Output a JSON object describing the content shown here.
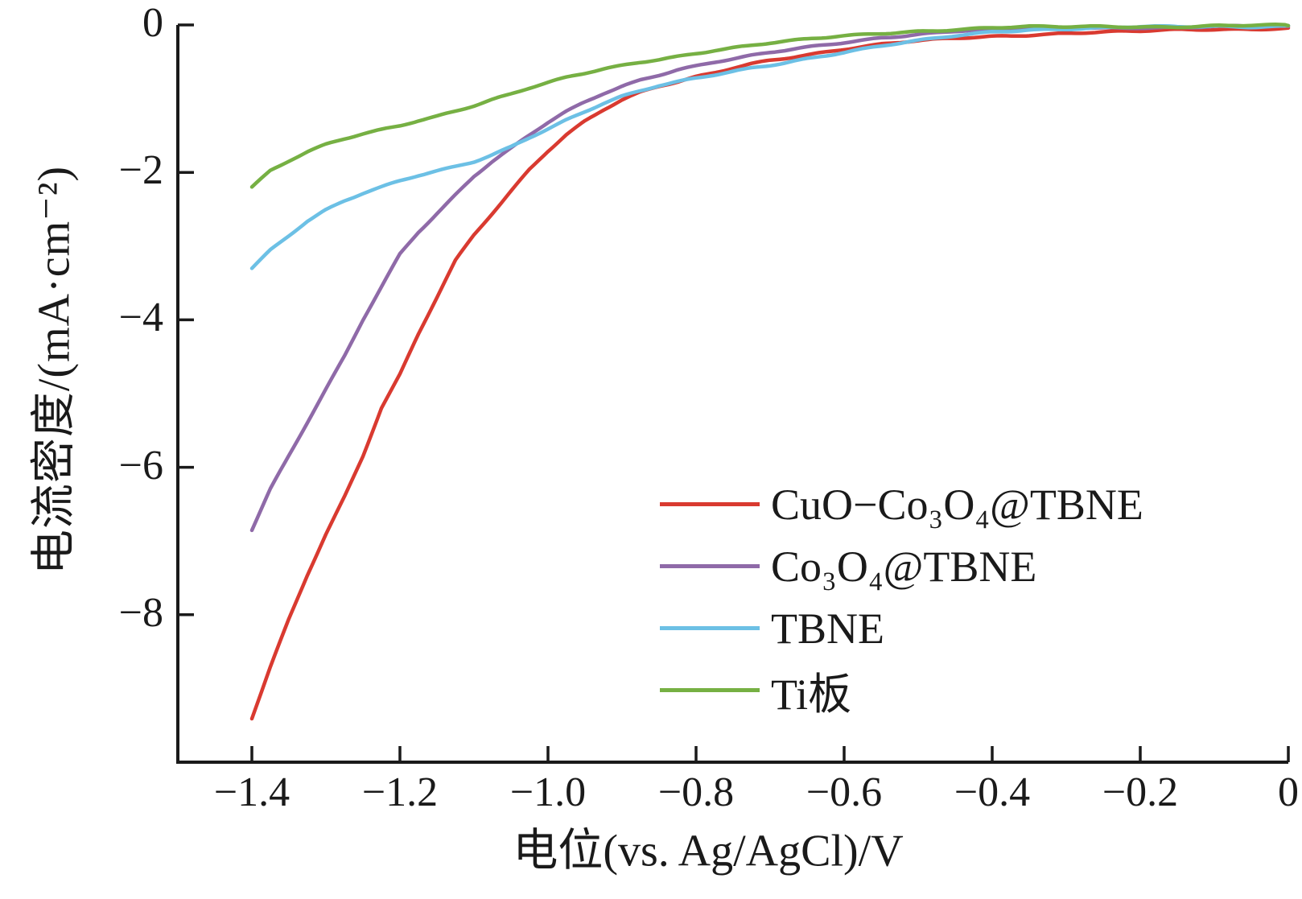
{
  "figure": {
    "background": "#ffffff",
    "axis_color": "#1a1a1a"
  },
  "chart_data": {
    "type": "line",
    "title": "",
    "xlabel": "电位(vs. Ag/AgCl)/V",
    "ylabel": "电流密度/(mA·cm⁻²)",
    "xlim": [
      -1.5,
      0
    ],
    "ylim": [
      -10,
      0
    ],
    "grid": false,
    "legend_position": "inside lower-right",
    "x_ticks": {
      "values": [
        -1.4,
        -1.2,
        -1.0,
        -0.8,
        -0.6,
        -0.4,
        -0.2,
        0
      ],
      "labels": [
        "−1.4",
        "−1.2",
        "−1.0",
        "−0.8",
        "−0.6",
        "−0.4",
        "−0.2",
        "0"
      ]
    },
    "y_ticks": {
      "values": [
        0,
        -2,
        -4,
        -6,
        -8
      ],
      "labels": [
        "0",
        "−2",
        "−4",
        "−6",
        "−8"
      ]
    },
    "series": [
      {
        "name": "CuO−Co₃O₄@TBNE",
        "color": "#d93a30",
        "points": [
          [
            -1.4,
            -9.4
          ],
          [
            -1.375,
            -8.7
          ],
          [
            -1.35,
            -8.05
          ],
          [
            -1.325,
            -7.45
          ],
          [
            -1.3,
            -6.9
          ],
          [
            -1.275,
            -6.4
          ],
          [
            -1.25,
            -5.85
          ],
          [
            -1.225,
            -5.2
          ],
          [
            -1.2,
            -4.75
          ],
          [
            -1.175,
            -4.2
          ],
          [
            -1.15,
            -3.7
          ],
          [
            -1.125,
            -3.2
          ],
          [
            -1.1,
            -2.85
          ],
          [
            -1.075,
            -2.55
          ],
          [
            -1.05,
            -2.25
          ],
          [
            -1.025,
            -1.95
          ],
          [
            -1.0,
            -1.7
          ],
          [
            -0.975,
            -1.48
          ],
          [
            -0.95,
            -1.3
          ],
          [
            -0.925,
            -1.15
          ],
          [
            -0.9,
            -1.02
          ],
          [
            -0.875,
            -0.92
          ],
          [
            -0.85,
            -0.84
          ],
          [
            -0.825,
            -0.78
          ],
          [
            -0.8,
            -0.71
          ],
          [
            -0.775,
            -0.65
          ],
          [
            -0.75,
            -0.58
          ],
          [
            -0.725,
            -0.52
          ],
          [
            -0.7,
            -0.47
          ],
          [
            -0.65,
            -0.4
          ],
          [
            -0.6,
            -0.33
          ],
          [
            -0.55,
            -0.27
          ],
          [
            -0.5,
            -0.22
          ],
          [
            -0.45,
            -0.18
          ],
          [
            -0.4,
            -0.15
          ],
          [
            -0.35,
            -0.13
          ],
          [
            -0.3,
            -0.11
          ],
          [
            -0.25,
            -0.1
          ],
          [
            -0.2,
            -0.09
          ],
          [
            -0.15,
            -0.07
          ],
          [
            -0.1,
            -0.06
          ],
          [
            -0.05,
            -0.05
          ],
          [
            0.0,
            -0.04
          ]
        ]
      },
      {
        "name": "Co₃O₄@TBNE",
        "color": "#8f6aa8",
        "points": [
          [
            -1.4,
            -6.85
          ],
          [
            -1.375,
            -6.3
          ],
          [
            -1.35,
            -5.85
          ],
          [
            -1.325,
            -5.4
          ],
          [
            -1.3,
            -4.95
          ],
          [
            -1.275,
            -4.5
          ],
          [
            -1.25,
            -4.0
          ],
          [
            -1.225,
            -3.55
          ],
          [
            -1.2,
            -3.1
          ],
          [
            -1.175,
            -2.8
          ],
          [
            -1.15,
            -2.55
          ],
          [
            -1.125,
            -2.3
          ],
          [
            -1.1,
            -2.05
          ],
          [
            -1.075,
            -1.85
          ],
          [
            -1.05,
            -1.68
          ],
          [
            -1.025,
            -1.5
          ],
          [
            -1.0,
            -1.33
          ],
          [
            -0.975,
            -1.18
          ],
          [
            -0.95,
            -1.05
          ],
          [
            -0.925,
            -0.93
          ],
          [
            -0.9,
            -0.83
          ],
          [
            -0.875,
            -0.74
          ],
          [
            -0.85,
            -0.67
          ],
          [
            -0.825,
            -0.6
          ],
          [
            -0.8,
            -0.55
          ],
          [
            -0.775,
            -0.5
          ],
          [
            -0.75,
            -0.46
          ],
          [
            -0.725,
            -0.42
          ],
          [
            -0.7,
            -0.38
          ],
          [
            -0.65,
            -0.31
          ],
          [
            -0.6,
            -0.24
          ],
          [
            -0.55,
            -0.17
          ],
          [
            -0.5,
            -0.12
          ],
          [
            -0.45,
            -0.08
          ],
          [
            -0.4,
            -0.06
          ],
          [
            -0.35,
            -0.05
          ],
          [
            -0.3,
            -0.04
          ],
          [
            -0.25,
            -0.04
          ],
          [
            -0.2,
            -0.03
          ],
          [
            -0.15,
            -0.03
          ],
          [
            -0.1,
            -0.02
          ],
          [
            -0.05,
            -0.02
          ],
          [
            0.0,
            -0.02
          ]
        ]
      },
      {
        "name": "TBNE",
        "color": "#6cc0e5",
        "points": [
          [
            -1.4,
            -3.3
          ],
          [
            -1.375,
            -3.05
          ],
          [
            -1.35,
            -2.85
          ],
          [
            -1.325,
            -2.65
          ],
          [
            -1.3,
            -2.5
          ],
          [
            -1.275,
            -2.38
          ],
          [
            -1.25,
            -2.28
          ],
          [
            -1.225,
            -2.2
          ],
          [
            -1.2,
            -2.12
          ],
          [
            -1.175,
            -2.05
          ],
          [
            -1.15,
            -1.99
          ],
          [
            -1.125,
            -1.93
          ],
          [
            -1.1,
            -1.86
          ],
          [
            -1.075,
            -1.76
          ],
          [
            -1.05,
            -1.65
          ],
          [
            -1.025,
            -1.52
          ],
          [
            -1.0,
            -1.4
          ],
          [
            -0.975,
            -1.28
          ],
          [
            -0.95,
            -1.17
          ],
          [
            -0.925,
            -1.06
          ],
          [
            -0.9,
            -0.97
          ],
          [
            -0.875,
            -0.9
          ],
          [
            -0.85,
            -0.83
          ],
          [
            -0.825,
            -0.78
          ],
          [
            -0.8,
            -0.73
          ],
          [
            -0.775,
            -0.68
          ],
          [
            -0.75,
            -0.63
          ],
          [
            -0.725,
            -0.58
          ],
          [
            -0.7,
            -0.54
          ],
          [
            -0.65,
            -0.45
          ],
          [
            -0.6,
            -0.37
          ],
          [
            -0.55,
            -0.29
          ],
          [
            -0.5,
            -0.22
          ],
          [
            -0.45,
            -0.15
          ],
          [
            -0.4,
            -0.09
          ],
          [
            -0.35,
            -0.06
          ],
          [
            -0.3,
            -0.05
          ],
          [
            -0.25,
            -0.04
          ],
          [
            -0.2,
            -0.03
          ],
          [
            -0.15,
            -0.03
          ],
          [
            -0.1,
            -0.02
          ],
          [
            -0.05,
            -0.02
          ],
          [
            0.0,
            -0.01
          ]
        ]
      },
      {
        "name": "Ti板",
        "color": "#76b043",
        "points": [
          [
            -1.4,
            -2.2
          ],
          [
            -1.375,
            -1.98
          ],
          [
            -1.35,
            -1.85
          ],
          [
            -1.325,
            -1.73
          ],
          [
            -1.3,
            -1.63
          ],
          [
            -1.275,
            -1.55
          ],
          [
            -1.25,
            -1.48
          ],
          [
            -1.225,
            -1.42
          ],
          [
            -1.2,
            -1.36
          ],
          [
            -1.175,
            -1.29
          ],
          [
            -1.15,
            -1.23
          ],
          [
            -1.125,
            -1.16
          ],
          [
            -1.1,
            -1.09
          ],
          [
            -1.075,
            -1.01
          ],
          [
            -1.05,
            -0.94
          ],
          [
            -1.025,
            -0.86
          ],
          [
            -1.0,
            -0.79
          ],
          [
            -0.975,
            -0.72
          ],
          [
            -0.95,
            -0.66
          ],
          [
            -0.925,
            -0.6
          ],
          [
            -0.9,
            -0.55
          ],
          [
            -0.875,
            -0.5
          ],
          [
            -0.85,
            -0.46
          ],
          [
            -0.825,
            -0.42
          ],
          [
            -0.8,
            -0.38
          ],
          [
            -0.775,
            -0.34
          ],
          [
            -0.75,
            -0.31
          ],
          [
            -0.725,
            -0.28
          ],
          [
            -0.7,
            -0.25
          ],
          [
            -0.65,
            -0.2
          ],
          [
            -0.6,
            -0.15
          ],
          [
            -0.55,
            -0.11
          ],
          [
            -0.5,
            -0.08
          ],
          [
            -0.45,
            -0.06
          ],
          [
            -0.4,
            -0.04
          ],
          [
            -0.35,
            -0.03
          ],
          [
            -0.3,
            -0.03
          ],
          [
            -0.25,
            -0.02
          ],
          [
            -0.2,
            -0.02
          ],
          [
            -0.15,
            -0.02
          ],
          [
            -0.1,
            -0.01
          ],
          [
            -0.05,
            -0.01
          ],
          [
            0.0,
            -0.01
          ]
        ]
      }
    ]
  }
}
